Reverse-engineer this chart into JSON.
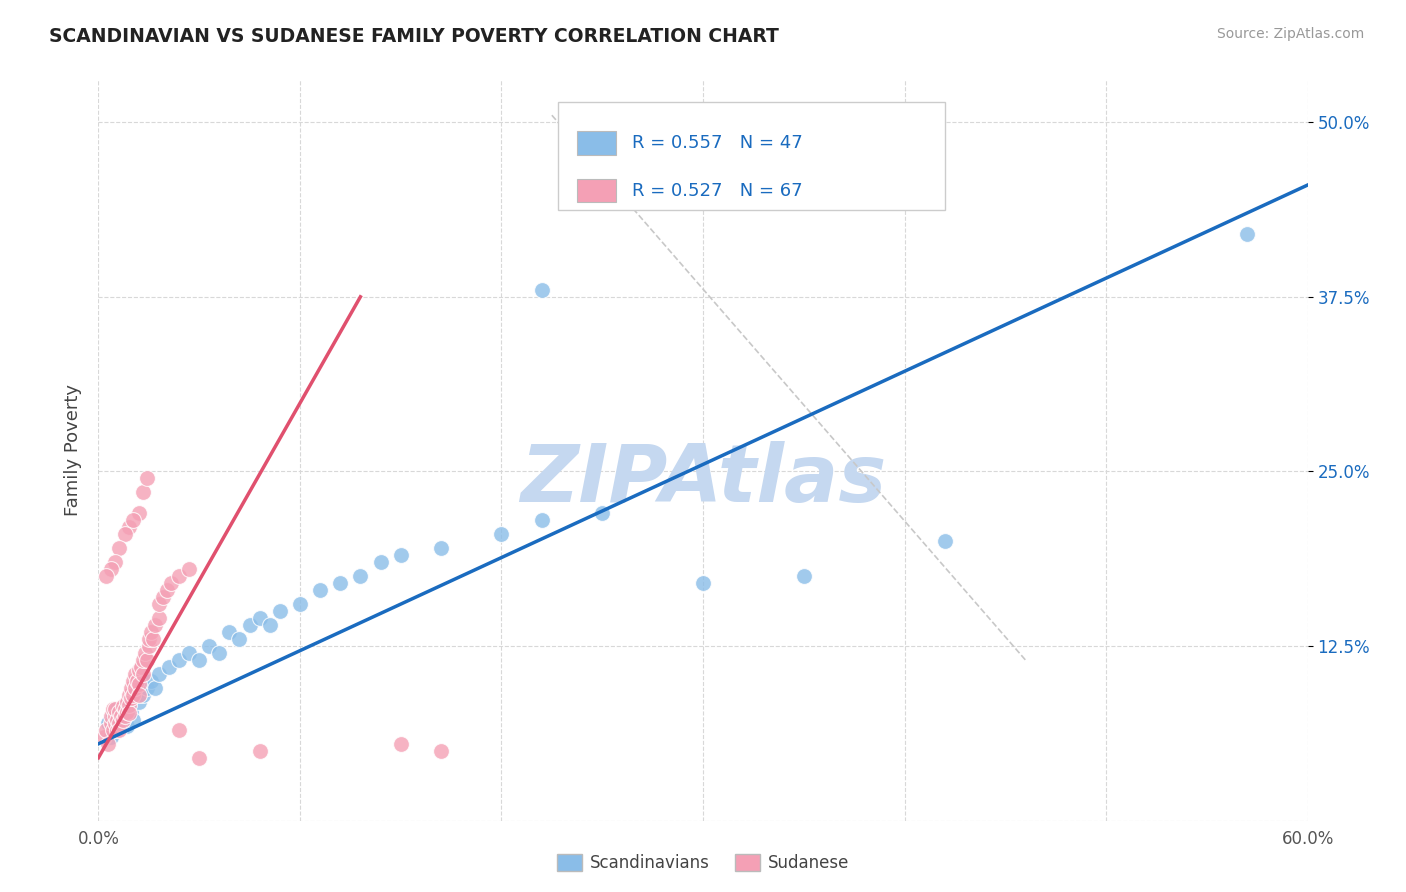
{
  "title": "SCANDINAVIAN VS SUDANESE FAMILY POVERTY CORRELATION CHART",
  "source": "Source: ZipAtlas.com",
  "ylabel": "Family Poverty",
  "xlim": [
    0.0,
    0.6
  ],
  "ylim": [
    0.0,
    0.53
  ],
  "xticks": [
    0.0,
    0.1,
    0.2,
    0.3,
    0.4,
    0.5,
    0.6
  ],
  "xticklabels": [
    "0.0%",
    "",
    "",
    "",
    "",
    "",
    "60.0%"
  ],
  "yticks": [
    0.125,
    0.25,
    0.375,
    0.5
  ],
  "yticklabels": [
    "12.5%",
    "25.0%",
    "37.5%",
    "50.0%"
  ],
  "scandinavian_color": "#8abde8",
  "sudanese_color": "#f4a0b5",
  "regression_blue_color": "#1a6bbf",
  "regression_pink_color": "#e0506e",
  "regression_diagonal_color": "#c8c8c8",
  "background_color": "#ffffff",
  "grid_color": "#d8d8d8",
  "text_blue_color": "#1a6bbf",
  "watermark_color": "#c5d8f0",
  "legend_R_blue": "R = 0.557",
  "legend_N_blue": "N = 47",
  "legend_R_pink": "R = 0.527",
  "legend_N_pink": "N = 67",
  "scandinavians_label": "Scandinavians",
  "sudanese_label": "Sudanese",
  "blue_line": [
    [
      0.0,
      0.055
    ],
    [
      0.6,
      0.455
    ]
  ],
  "pink_line": [
    [
      0.0,
      0.045
    ],
    [
      0.13,
      0.375
    ]
  ],
  "diag_line": [
    [
      0.225,
      0.505
    ],
    [
      0.46,
      0.115
    ]
  ],
  "scandinavian_points": [
    [
      0.005,
      0.07
    ],
    [
      0.006,
      0.06
    ],
    [
      0.007,
      0.075
    ],
    [
      0.008,
      0.065
    ],
    [
      0.009,
      0.08
    ],
    [
      0.01,
      0.07
    ],
    [
      0.011,
      0.075
    ],
    [
      0.012,
      0.08
    ],
    [
      0.013,
      0.072
    ],
    [
      0.014,
      0.068
    ],
    [
      0.015,
      0.085
    ],
    [
      0.016,
      0.078
    ],
    [
      0.017,
      0.072
    ],
    [
      0.018,
      0.09
    ],
    [
      0.02,
      0.085
    ],
    [
      0.022,
      0.09
    ],
    [
      0.024,
      0.095
    ],
    [
      0.026,
      0.1
    ],
    [
      0.028,
      0.095
    ],
    [
      0.03,
      0.105
    ],
    [
      0.035,
      0.11
    ],
    [
      0.04,
      0.115
    ],
    [
      0.045,
      0.12
    ],
    [
      0.05,
      0.115
    ],
    [
      0.055,
      0.125
    ],
    [
      0.06,
      0.12
    ],
    [
      0.065,
      0.135
    ],
    [
      0.07,
      0.13
    ],
    [
      0.075,
      0.14
    ],
    [
      0.08,
      0.145
    ],
    [
      0.085,
      0.14
    ],
    [
      0.09,
      0.15
    ],
    [
      0.1,
      0.155
    ],
    [
      0.11,
      0.165
    ],
    [
      0.12,
      0.17
    ],
    [
      0.13,
      0.175
    ],
    [
      0.14,
      0.185
    ],
    [
      0.15,
      0.19
    ],
    [
      0.17,
      0.195
    ],
    [
      0.2,
      0.205
    ],
    [
      0.22,
      0.215
    ],
    [
      0.25,
      0.22
    ],
    [
      0.3,
      0.17
    ],
    [
      0.35,
      0.175
    ],
    [
      0.42,
      0.2
    ],
    [
      0.57,
      0.42
    ],
    [
      0.22,
      0.38
    ]
  ],
  "sudanese_points": [
    [
      0.003,
      0.06
    ],
    [
      0.004,
      0.065
    ],
    [
      0.005,
      0.055
    ],
    [
      0.006,
      0.07
    ],
    [
      0.006,
      0.075
    ],
    [
      0.007,
      0.065
    ],
    [
      0.007,
      0.08
    ],
    [
      0.008,
      0.07
    ],
    [
      0.008,
      0.075
    ],
    [
      0.008,
      0.08
    ],
    [
      0.009,
      0.065
    ],
    [
      0.009,
      0.072
    ],
    [
      0.01,
      0.078
    ],
    [
      0.01,
      0.07
    ],
    [
      0.01,
      0.065
    ],
    [
      0.011,
      0.075
    ],
    [
      0.012,
      0.082
    ],
    [
      0.012,
      0.072
    ],
    [
      0.013,
      0.08
    ],
    [
      0.013,
      0.075
    ],
    [
      0.014,
      0.085
    ],
    [
      0.014,
      0.078
    ],
    [
      0.015,
      0.09
    ],
    [
      0.015,
      0.083
    ],
    [
      0.015,
      0.077
    ],
    [
      0.016,
      0.088
    ],
    [
      0.016,
      0.095
    ],
    [
      0.017,
      0.1
    ],
    [
      0.017,
      0.09
    ],
    [
      0.018,
      0.095
    ],
    [
      0.018,
      0.105
    ],
    [
      0.019,
      0.1
    ],
    [
      0.02,
      0.108
    ],
    [
      0.02,
      0.098
    ],
    [
      0.02,
      0.09
    ],
    [
      0.021,
      0.11
    ],
    [
      0.022,
      0.105
    ],
    [
      0.022,
      0.115
    ],
    [
      0.023,
      0.12
    ],
    [
      0.024,
      0.115
    ],
    [
      0.025,
      0.125
    ],
    [
      0.025,
      0.13
    ],
    [
      0.026,
      0.135
    ],
    [
      0.027,
      0.13
    ],
    [
      0.028,
      0.14
    ],
    [
      0.03,
      0.145
    ],
    [
      0.03,
      0.155
    ],
    [
      0.032,
      0.16
    ],
    [
      0.034,
      0.165
    ],
    [
      0.036,
      0.17
    ],
    [
      0.04,
      0.175
    ],
    [
      0.045,
      0.18
    ],
    [
      0.02,
      0.22
    ],
    [
      0.022,
      0.235
    ],
    [
      0.024,
      0.245
    ],
    [
      0.015,
      0.21
    ],
    [
      0.017,
      0.215
    ],
    [
      0.013,
      0.205
    ],
    [
      0.01,
      0.195
    ],
    [
      0.008,
      0.185
    ],
    [
      0.006,
      0.18
    ],
    [
      0.004,
      0.175
    ],
    [
      0.05,
      0.045
    ],
    [
      0.08,
      0.05
    ],
    [
      0.15,
      0.055
    ],
    [
      0.17,
      0.05
    ],
    [
      0.04,
      0.065
    ]
  ]
}
